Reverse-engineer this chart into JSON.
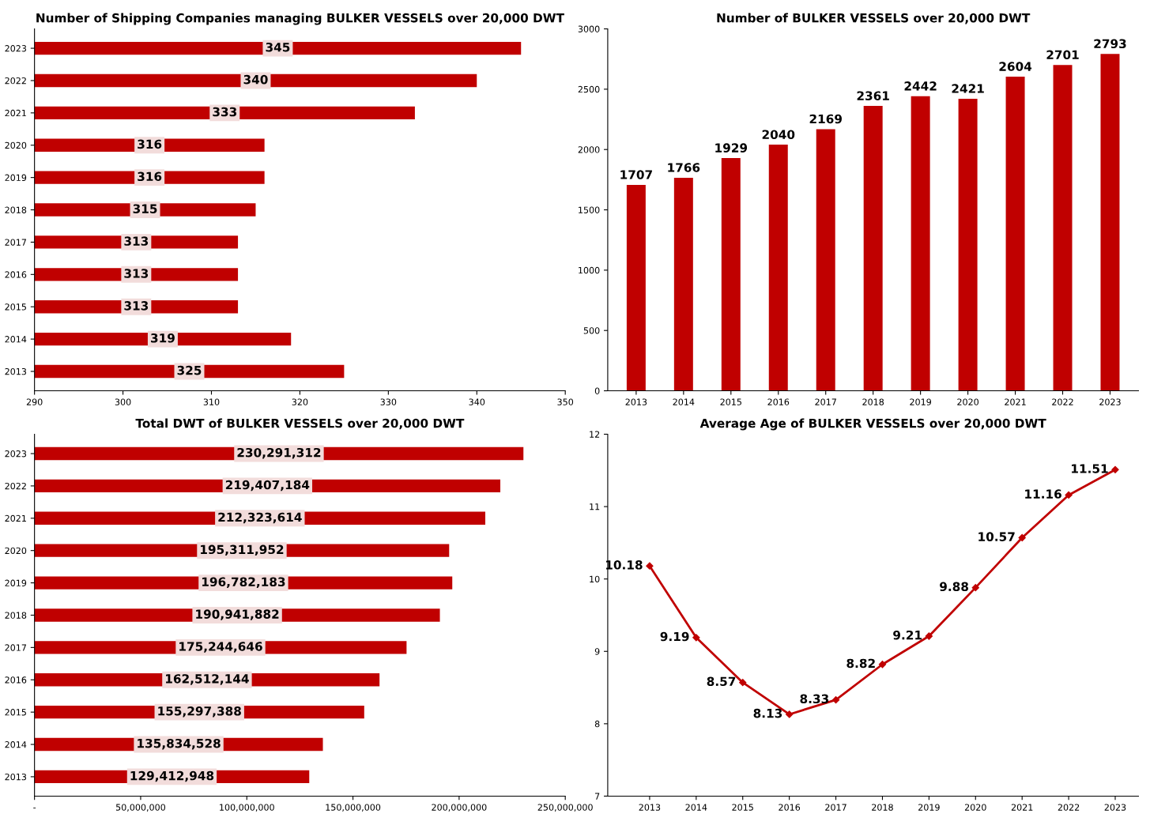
{
  "chart_data": [
    {
      "type": "bar",
      "orientation": "horizontal",
      "title": "Number of Shipping Companies managing BULKER VESSELS over 20,000 DWT",
      "categories": [
        "2023",
        "2022",
        "2021",
        "2020",
        "2019",
        "2018",
        "2017",
        "2016",
        "2015",
        "2014",
        "2013"
      ],
      "values": [
        345,
        340,
        333,
        316,
        316,
        315,
        313,
        313,
        313,
        319,
        325
      ],
      "color": "#c00000",
      "xlim": [
        290,
        350
      ],
      "xticks": [
        290,
        300,
        310,
        320,
        330,
        340,
        350
      ],
      "data_labels": true,
      "grid": false,
      "legend": false
    },
    {
      "type": "bar",
      "title": "Number of BULKER VESSELS over 20,000 DWT",
      "categories": [
        "2013",
        "2014",
        "2015",
        "2016",
        "2017",
        "2018",
        "2019",
        "2020",
        "2021",
        "2022",
        "2023"
      ],
      "values": [
        1707,
        1766,
        1929,
        2040,
        2169,
        2361,
        2442,
        2421,
        2604,
        2701,
        2793
      ],
      "color": "#c00000",
      "ylim": [
        0,
        3000
      ],
      "yticks": [
        0,
        500,
        1000,
        1500,
        2000,
        2500,
        3000
      ],
      "data_labels": true,
      "grid": false,
      "legend": false
    },
    {
      "type": "bar",
      "orientation": "horizontal",
      "title": "Total DWT of BULKER VESSELS over 20,000 DWT",
      "categories": [
        "2023",
        "2022",
        "2021",
        "2020",
        "2019",
        "2018",
        "2017",
        "2016",
        "2015",
        "2014",
        "2013"
      ],
      "values": [
        230291312,
        219407184,
        212323614,
        195311952,
        196782183,
        190941882,
        175244646,
        162512144,
        155297388,
        135834528,
        129412948
      ],
      "color": "#c00000",
      "value_labels": [
        "230,291,312",
        "219,407,184",
        "212,323,614",
        "195,311,952",
        "196,782,183",
        "190,941,882",
        "175,244,646",
        "162,512,144",
        "155,297,388",
        "135,834,528",
        "129,412,948"
      ],
      "xlim": [
        0,
        250000000
      ],
      "xticks": [
        {
          "value": 0,
          "label": "-"
        },
        {
          "value": 50000000,
          "label": "50,000,000"
        },
        {
          "value": 100000000,
          "label": "100,000,000"
        },
        {
          "value": 150000000,
          "label": "150,000,000"
        },
        {
          "value": 200000000,
          "label": "200,000,000"
        },
        {
          "value": 250000000,
          "label": "250,000,000"
        }
      ],
      "grid": false,
      "legend": false
    },
    {
      "type": "line",
      "title": "Average Age of BULKER VESSELS over 20,000 DWT",
      "categories": [
        "2013",
        "2014",
        "2015",
        "2016",
        "2017",
        "2018",
        "2019",
        "2020",
        "2021",
        "2022",
        "2023"
      ],
      "values": [
        10.18,
        9.19,
        8.57,
        8.13,
        8.33,
        8.82,
        9.21,
        9.88,
        10.57,
        11.16,
        11.51
      ],
      "color": "#c00000",
      "ylim": [
        7,
        12
      ],
      "yticks": [
        7,
        8,
        9,
        10,
        11,
        12
      ],
      "data_labels": true,
      "marker": "diamond",
      "line_style": "solid",
      "grid": false,
      "legend": false
    }
  ]
}
